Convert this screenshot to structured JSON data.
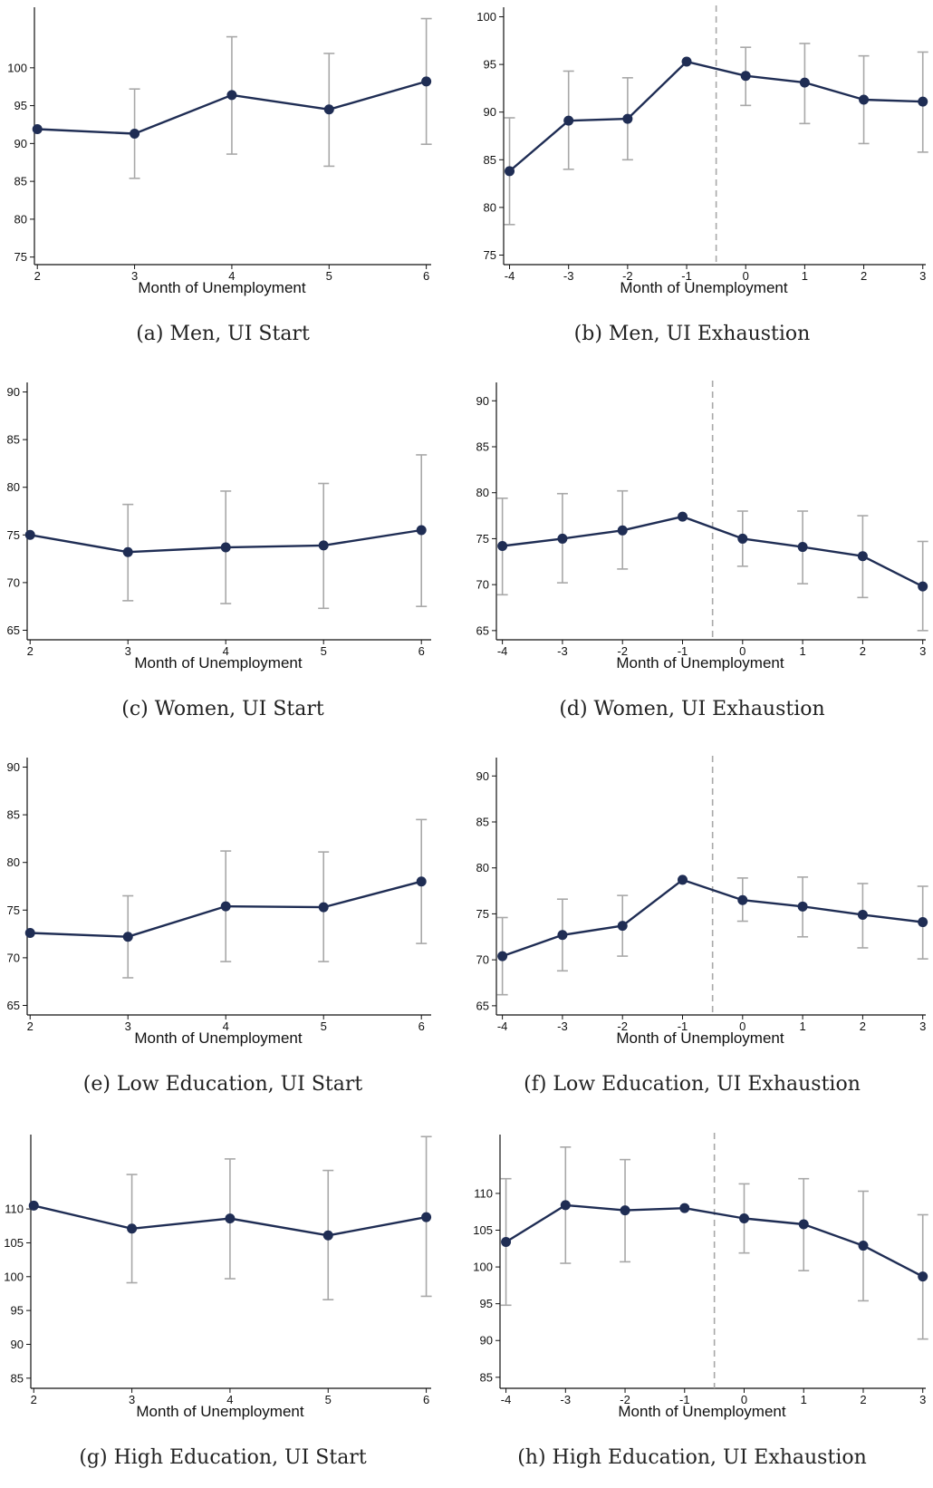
{
  "chart_data": [
    {
      "type": "line",
      "caption": "(a) Men, UI Start",
      "xlabel": "Month of Unemployment",
      "x": [
        2,
        3,
        4,
        5,
        6
      ],
      "y": [
        91.9,
        91.3,
        96.4,
        94.5,
        98.2
      ],
      "ci_low": [
        91.9,
        85.4,
        88.6,
        87.0,
        89.9
      ],
      "ci_high": [
        91.9,
        97.2,
        104.1,
        101.9,
        106.5
      ],
      "xticks": [
        2,
        3,
        4,
        5,
        6
      ],
      "yticks": [
        75,
        80,
        85,
        90,
        95,
        100
      ],
      "xlim": [
        1.97,
        6.05
      ],
      "ylim": [
        74,
        108
      ],
      "event_line": null
    },
    {
      "type": "line",
      "caption": "(b) Men, UI Exhaustion",
      "xlabel": "Month of Unemployment",
      "x": [
        -4,
        -3,
        -2,
        -1,
        0,
        1,
        2,
        3
      ],
      "y": [
        83.8,
        89.1,
        89.3,
        95.3,
        93.8,
        93.1,
        91.3,
        91.1
      ],
      "ci_low": [
        78.2,
        84.0,
        85.0,
        95.3,
        90.7,
        88.8,
        86.7,
        85.8
      ],
      "ci_high": [
        89.4,
        94.3,
        93.6,
        95.3,
        96.8,
        97.2,
        95.9,
        96.3
      ],
      "xticks": [
        -4,
        -3,
        -2,
        -1,
        0,
        1,
        2,
        3
      ],
      "yticks": [
        75,
        80,
        85,
        90,
        95,
        100
      ],
      "xlim": [
        -4.1,
        3.05
      ],
      "ylim": [
        74,
        101
      ],
      "event_line": -0.5
    },
    {
      "type": "line",
      "caption": "(c) Women, UI Start",
      "xlabel": "Month of Unemployment",
      "x": [
        2,
        3,
        4,
        5,
        6
      ],
      "y": [
        75.0,
        73.2,
        73.7,
        73.9,
        75.5
      ],
      "ci_low": [
        75.0,
        68.1,
        67.8,
        67.3,
        67.5
      ],
      "ci_high": [
        75.0,
        78.2,
        79.6,
        80.4,
        83.4
      ],
      "xticks": [
        2,
        3,
        4,
        5,
        6
      ],
      "yticks": [
        65,
        70,
        75,
        80,
        85,
        90
      ],
      "xlim": [
        1.97,
        6.1
      ],
      "ylim": [
        64,
        91
      ],
      "event_line": null
    },
    {
      "type": "line",
      "caption": "(d) Women, UI Exhaustion",
      "xlabel": "Month of Unemployment",
      "x": [
        -4,
        -3,
        -2,
        -1,
        0,
        1,
        2,
        3
      ],
      "y": [
        74.2,
        75.0,
        75.9,
        77.4,
        75.0,
        74.1,
        73.1,
        69.8
      ],
      "ci_low": [
        68.9,
        70.2,
        71.7,
        77.4,
        72.0,
        70.1,
        68.6,
        65.0
      ],
      "ci_high": [
        79.4,
        79.9,
        80.2,
        77.4,
        78.0,
        78.0,
        77.5,
        74.7
      ],
      "xticks": [
        -4,
        -3,
        -2,
        -1,
        0,
        1,
        2,
        3
      ],
      "yticks": [
        65,
        70,
        75,
        80,
        85,
        90
      ],
      "xlim": [
        -4.1,
        3.05
      ],
      "ylim": [
        64,
        92
      ],
      "event_line": -0.5
    },
    {
      "type": "line",
      "caption": "(e) Low Education, UI Start",
      "xlabel": "Month of Unemployment",
      "x": [
        2,
        3,
        4,
        5,
        6
      ],
      "y": [
        72.6,
        72.2,
        75.4,
        75.3,
        78.0
      ],
      "ci_low": [
        72.6,
        67.9,
        69.6,
        69.6,
        71.5
      ],
      "ci_high": [
        72.6,
        76.5,
        81.2,
        81.1,
        84.5
      ],
      "xticks": [
        2,
        3,
        4,
        5,
        6
      ],
      "yticks": [
        65,
        70,
        75,
        80,
        85,
        90
      ],
      "xlim": [
        1.97,
        6.1
      ],
      "ylim": [
        64,
        91
      ],
      "event_line": null
    },
    {
      "type": "line",
      "caption": "(f) Low Education, UI Exhaustion",
      "xlabel": "Month of Unemployment",
      "x": [
        -4,
        -3,
        -2,
        -1,
        0,
        1,
        2,
        3
      ],
      "y": [
        70.4,
        72.7,
        73.7,
        78.7,
        76.5,
        75.8,
        74.9,
        74.1
      ],
      "ci_low": [
        66.2,
        68.8,
        70.4,
        78.7,
        74.2,
        72.5,
        71.3,
        70.1
      ],
      "ci_high": [
        74.6,
        76.6,
        77.0,
        78.7,
        78.9,
        79.0,
        78.3,
        78.0
      ],
      "xticks": [
        -4,
        -3,
        -2,
        -1,
        0,
        1,
        2,
        3
      ],
      "yticks": [
        65,
        70,
        75,
        80,
        85,
        90
      ],
      "xlim": [
        -4.1,
        3.05
      ],
      "ylim": [
        64,
        92
      ],
      "event_line": -0.5
    },
    {
      "type": "line",
      "caption": "(g) High Education, UI Start",
      "xlabel": "Month of Unemployment",
      "x": [
        2,
        3,
        4,
        5,
        6
      ],
      "y": [
        110.5,
        107.1,
        108.6,
        106.1,
        108.8
      ],
      "ci_low": [
        110.5,
        99.1,
        99.7,
        96.6,
        97.1
      ],
      "ci_high": [
        110.5,
        115.1,
        117.4,
        115.7,
        120.7
      ],
      "xticks": [
        2,
        3,
        4,
        5,
        6
      ],
      "yticks": [
        85,
        90,
        95,
        100,
        105,
        110
      ],
      "xlim": [
        1.97,
        6.05
      ],
      "ylim": [
        83.5,
        121
      ],
      "event_line": null
    },
    {
      "type": "line",
      "caption": "(h) High Education, UI Exhaustion",
      "xlabel": "Month of Unemployment",
      "x": [
        -4,
        -3,
        -2,
        -1,
        0,
        1,
        2,
        3
      ],
      "y": [
        103.4,
        108.4,
        107.7,
        108.0,
        106.6,
        105.8,
        102.9,
        98.7
      ],
      "ci_low": [
        94.8,
        100.5,
        100.7,
        108.0,
        101.9,
        99.5,
        95.4,
        90.2
      ],
      "ci_high": [
        112.0,
        116.3,
        114.6,
        108.0,
        111.3,
        112.0,
        110.3,
        107.1
      ],
      "xticks": [
        -4,
        -3,
        -2,
        -1,
        0,
        1,
        2,
        3
      ],
      "yticks": [
        85,
        90,
        95,
        100,
        105,
        110
      ],
      "xlim": [
        -4.1,
        3.05
      ],
      "ylim": [
        83.5,
        118
      ],
      "event_line": -0.5
    }
  ],
  "colors": {
    "line": "#1f2d54",
    "marker": "#1f2d54",
    "errorbar": "#a8a8a8",
    "event_line": "#a8a8a8",
    "axis": "#111111"
  }
}
